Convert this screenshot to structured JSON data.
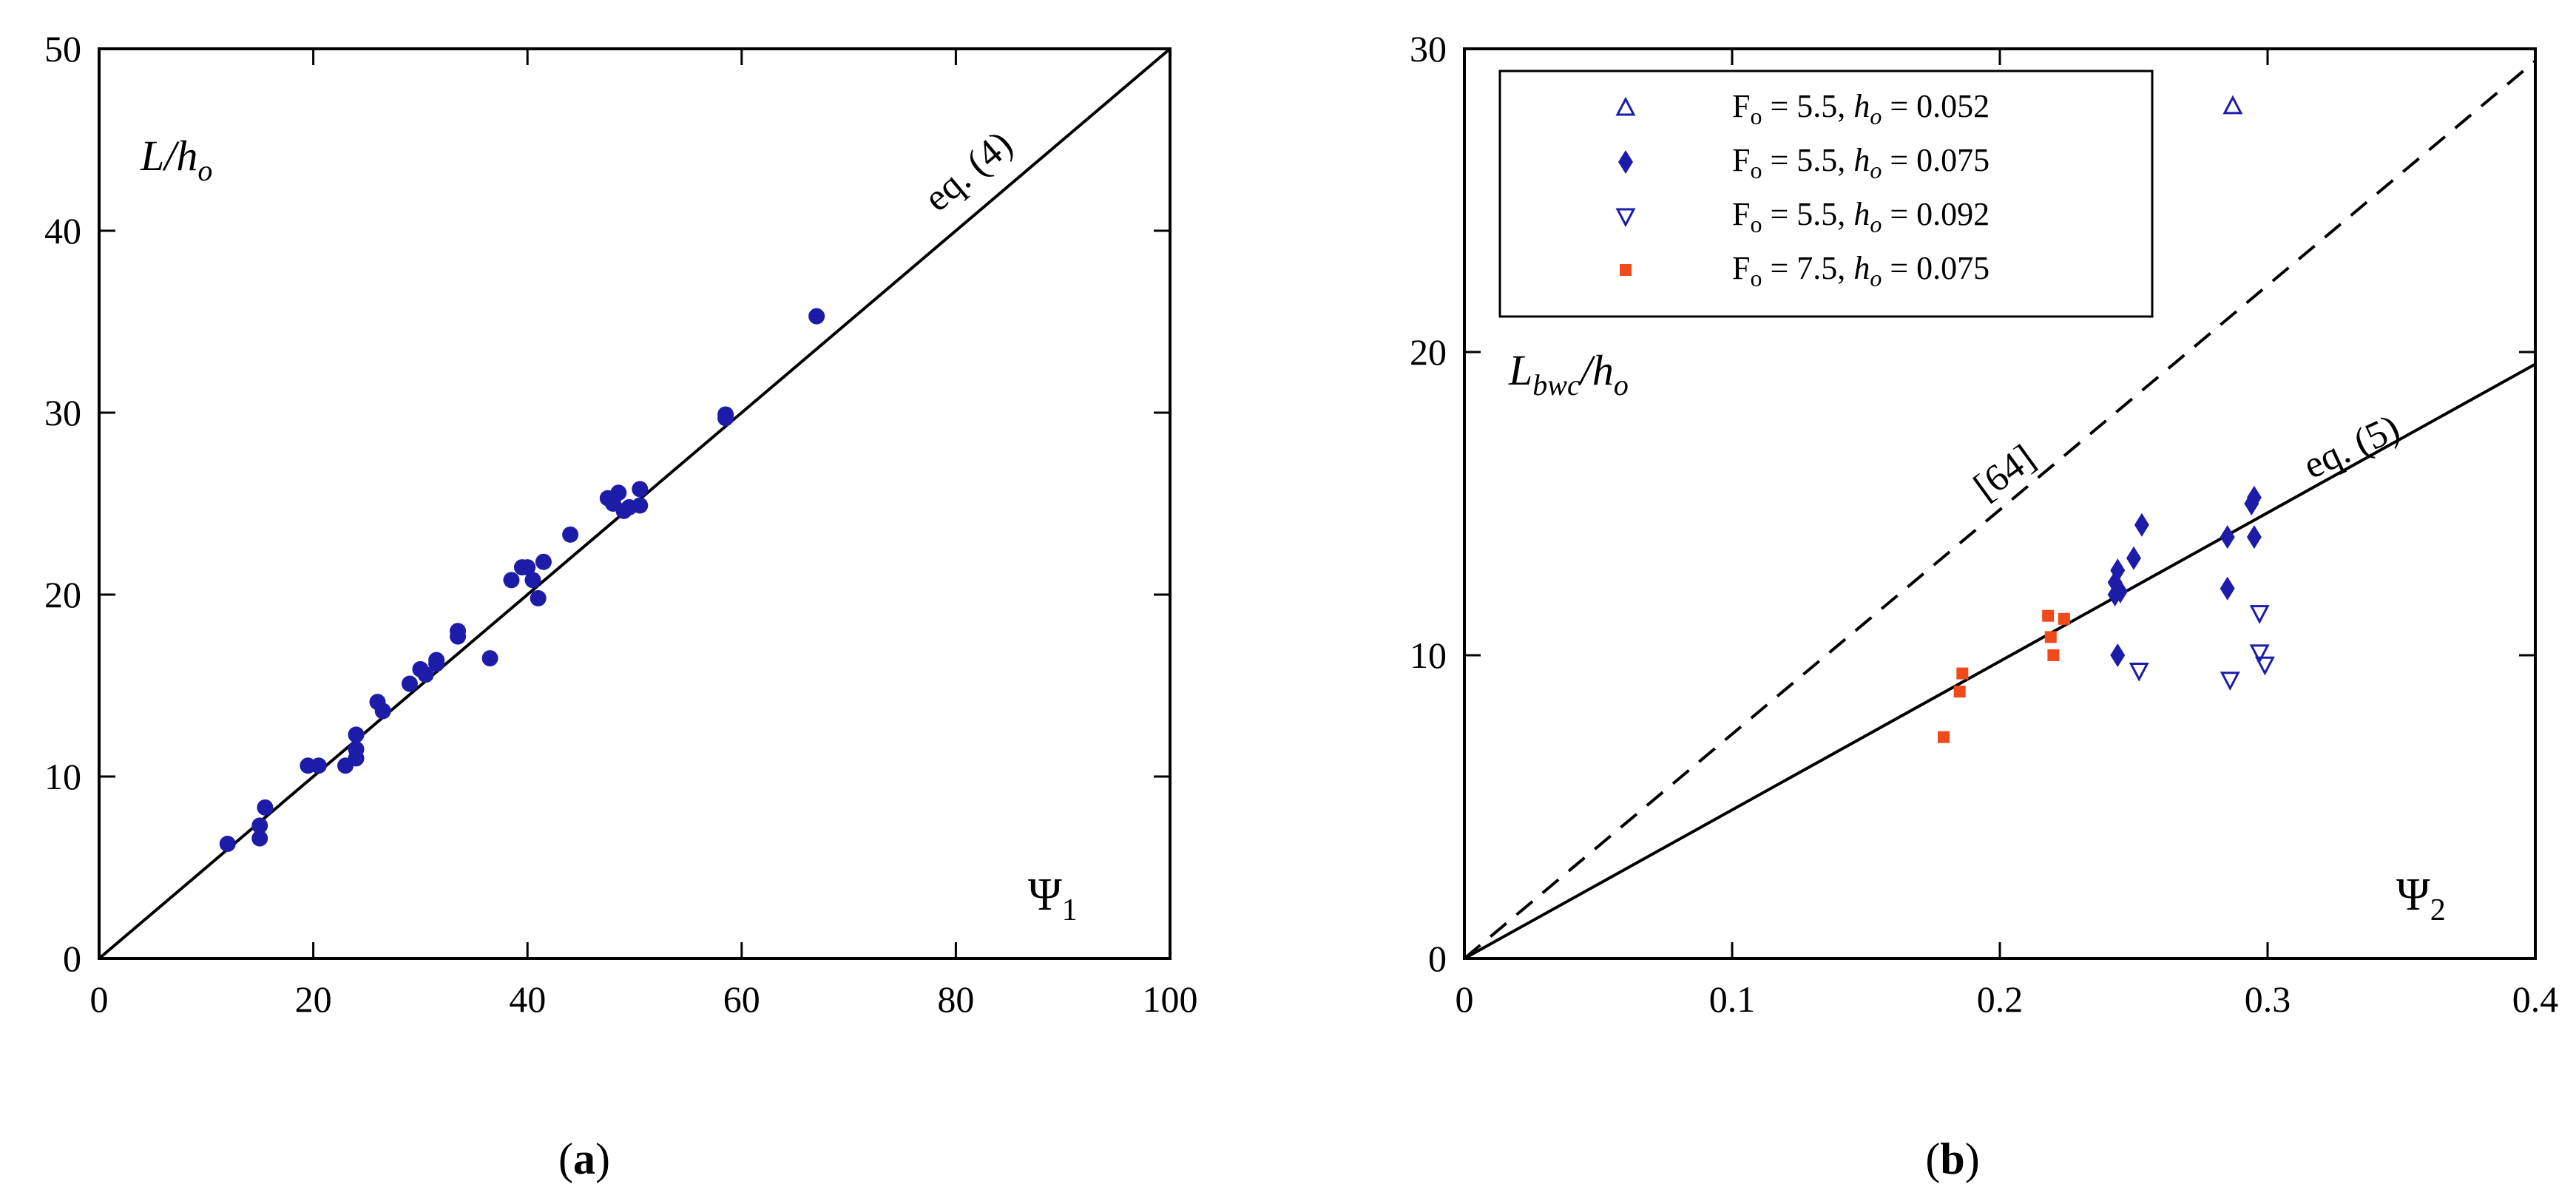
{
  "colors": {
    "blue": "#1c1ca8",
    "orange": "#f04a1c",
    "line": "#000000"
  },
  "chart_data": [
    {
      "type": "scatter",
      "caption_label": "a",
      "ylabel_main": "L",
      "ylabel_sub": "o",
      "ylabel_mid": "/h",
      "xlabel_main": "Ψ",
      "xlabel_sub": "1",
      "xlim": [
        0,
        100
      ],
      "ylim": [
        0,
        50
      ],
      "xticks": [
        "0",
        "20",
        "40",
        "60",
        "80",
        "100"
      ],
      "yticks": [
        "0",
        "10",
        "20",
        "30",
        "40",
        "50"
      ],
      "xtick_values": [
        0,
        20,
        40,
        60,
        80,
        100
      ],
      "ytick_values": [
        0,
        10,
        20,
        30,
        40,
        50
      ],
      "line_label": "eq. (4)",
      "line": {
        "x": [
          0,
          100
        ],
        "y": [
          0,
          50
        ]
      },
      "grid": false,
      "series": [
        {
          "marker": "circle",
          "x": [
            12,
            15,
            15,
            15.5,
            19.5,
            20.5,
            23,
            24,
            24,
            24,
            26,
            26.5,
            29,
            30,
            30.5,
            31.5,
            31.5,
            33.5,
            33.5,
            36.5,
            38.5,
            39.5,
            40,
            40.5,
            41,
            41.5,
            44,
            47.5,
            48,
            48.5,
            49,
            49.5,
            50.5,
            50.5,
            58.5,
            58.5,
            67
          ],
          "y": [
            6.3,
            7.3,
            6.6,
            8.3,
            10.6,
            10.6,
            10.6,
            11,
            11.5,
            12.3,
            14.1,
            13.6,
            15.1,
            15.9,
            15.6,
            16.2,
            16.4,
            17.7,
            18,
            16.5,
            20.8,
            21.5,
            21.5,
            20.8,
            19.8,
            21.8,
            23.3,
            25.3,
            25,
            25.6,
            24.6,
            24.8,
            25.8,
            24.9,
            29.7,
            29.9,
            35.3
          ]
        }
      ]
    },
    {
      "type": "scatter",
      "caption_label": "b",
      "ylabel_main": "L",
      "ylabel_sub1": "bwc",
      "ylabel_mid": "/h",
      "ylabel_sub": "o",
      "xlabel_main": "Ψ",
      "xlabel_sub": "2",
      "xlim": [
        0,
        0.4
      ],
      "ylim": [
        0,
        30
      ],
      "xticks": [
        "0",
        "0.1",
        "0.2",
        "0.3",
        "0.4"
      ],
      "yticks": [
        "0",
        "10",
        "20",
        "30"
      ],
      "xtick_values": [
        0,
        0.1,
        0.2,
        0.3,
        0.4
      ],
      "ytick_values": [
        0,
        10,
        20,
        30
      ],
      "grid": false,
      "legend_position": "top-left",
      "lines": [
        {
          "label": "eq. (5)",
          "style": "solid",
          "x": [
            0,
            0.4
          ],
          "y": [
            0,
            19.6
          ]
        },
        {
          "label": "[64]",
          "style": "dashed",
          "x": [
            0,
            0.4
          ],
          "y": [
            0,
            29.6
          ]
        }
      ],
      "series": [
        {
          "marker": "triangle-up-open",
          "color": "blue",
          "legend": {
            "f": "F",
            "fsub": "o",
            "fval": " = 5.5, ",
            "h": "h",
            "hsub": "o",
            "hval": " = 0.052"
          },
          "x": [
            0.287
          ],
          "y": [
            28.1
          ]
        },
        {
          "marker": "diamond",
          "color": "blue",
          "legend": {
            "f": "F",
            "fsub": "o",
            "fval": " = 5.5, ",
            "h": "h",
            "hsub": "o",
            "hval": " = 0.075"
          },
          "x": [
            0.243,
            0.243,
            0.244,
            0.245,
            0.244,
            0.25,
            0.253,
            0.285,
            0.285,
            0.294,
            0.295,
            0.295
          ],
          "y": [
            12.0,
            12.4,
            12.8,
            12.1,
            10.0,
            13.2,
            14.3,
            13.9,
            12.2,
            15.0,
            15.2,
            13.9
          ]
        },
        {
          "marker": "triangle-down-open",
          "color": "blue",
          "legend": {
            "f": "F",
            "fsub": "o",
            "fval": " = 5.5, ",
            "h": "h",
            "hsub": "o",
            "hval": " = 0.092"
          },
          "x": [
            0.252,
            0.286,
            0.297,
            0.297,
            0.299
          ],
          "y": [
            9.5,
            9.2,
            11.4,
            10.1,
            9.7
          ]
        },
        {
          "marker": "square",
          "color": "orange",
          "legend": {
            "f": "F",
            "fsub": "o",
            "fval": " = 7.5, ",
            "h": "h",
            "hsub": "o",
            "hval": " = 0.075"
          },
          "x": [
            0.179,
            0.185,
            0.186,
            0.218,
            0.219,
            0.22,
            0.224
          ],
          "y": [
            7.3,
            8.8,
            9.4,
            11.3,
            10.6,
            10.0,
            11.2
          ]
        }
      ]
    }
  ]
}
